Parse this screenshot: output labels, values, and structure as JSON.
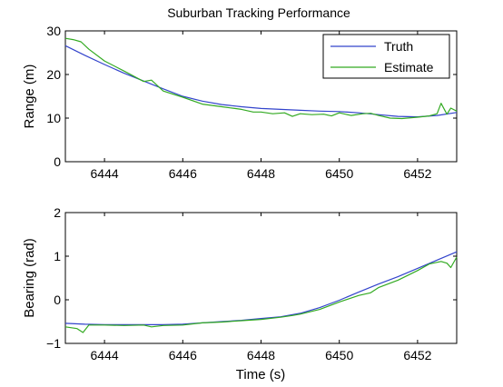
{
  "chart_data": [
    {
      "type": "line",
      "title": "Suburban Tracking Performance",
      "xlabel": "",
      "ylabel": "Range (m)",
      "xlim": [
        6443,
        6453
      ],
      "ylim": [
        0,
        30
      ],
      "xticks": [
        "6444",
        "6446",
        "6448",
        "6450",
        "6452"
      ],
      "xtick_values": [
        6444,
        6446,
        6448,
        6450,
        6452
      ],
      "yticks": [
        "0",
        "10",
        "20",
        "30"
      ],
      "ytick_values": [
        0,
        10,
        20,
        30
      ],
      "legend": {
        "position": "top-right"
      },
      "series": [
        {
          "name": "Truth",
          "color": "#3344cc",
          "x": [
            6443,
            6443.5,
            6444,
            6444.5,
            6445,
            6445.5,
            6446,
            6446.5,
            6447,
            6447.5,
            6448,
            6448.5,
            6449,
            6449.5,
            6450,
            6450.5,
            6451,
            6451.5,
            6452,
            6452.5,
            6453
          ],
          "y": [
            26.6,
            24.4,
            22.3,
            20.3,
            18.5,
            16.7,
            15.0,
            13.9,
            13.1,
            12.6,
            12.2,
            12.0,
            11.8,
            11.6,
            11.5,
            11.2,
            10.8,
            10.4,
            10.3,
            10.6,
            11.3
          ]
        },
        {
          "name": "Estimate",
          "color": "#33aa22",
          "x": [
            6443,
            6443.2,
            6443.4,
            6443.6,
            6444,
            6444.5,
            6445,
            6445.2,
            6445.5,
            6446,
            6446.5,
            6447,
            6447.5,
            6447.8,
            6448,
            6448.3,
            6448.6,
            6448.8,
            6449,
            6449.3,
            6449.6,
            6449.8,
            6450,
            6450.3,
            6450.6,
            6450.8,
            6451,
            6451.3,
            6451.6,
            6452,
            6452.3,
            6452.5,
            6452.6,
            6452.75,
            6452.85,
            6453
          ],
          "y": [
            28.3,
            28.0,
            27.5,
            25.8,
            23.1,
            20.8,
            18.4,
            18.7,
            16.2,
            14.8,
            13.2,
            12.6,
            12.0,
            11.4,
            11.4,
            11.0,
            11.2,
            10.4,
            11.0,
            10.8,
            10.9,
            10.5,
            11.2,
            10.6,
            11.0,
            11.1,
            10.6,
            10.0,
            9.9,
            10.2,
            10.5,
            11.0,
            13.4,
            10.9,
            12.3,
            11.6
          ]
        }
      ]
    },
    {
      "type": "line",
      "title": "",
      "xlabel": "Time (s)",
      "ylabel": "Bearing (rad)",
      "xlim": [
        6443,
        6453
      ],
      "ylim": [
        -1,
        2
      ],
      "xticks": [
        "6444",
        "6446",
        "6448",
        "6450",
        "6452"
      ],
      "xtick_values": [
        6444,
        6446,
        6448,
        6450,
        6452
      ],
      "yticks": [
        "−1",
        "0",
        "1",
        "2"
      ],
      "ytick_values": [
        -1,
        0,
        1,
        2
      ],
      "series": [
        {
          "color": "#3344cc",
          "x": [
            6443,
            6443.5,
            6444,
            6444.5,
            6445,
            6445.5,
            6446,
            6446.5,
            6447,
            6447.5,
            6448,
            6448.5,
            6449,
            6449.5,
            6450,
            6450.5,
            6451,
            6451.5,
            6452,
            6452.5,
            6453
          ],
          "y": [
            -0.54,
            -0.56,
            -0.57,
            -0.57,
            -0.57,
            -0.57,
            -0.56,
            -0.53,
            -0.5,
            -0.47,
            -0.43,
            -0.39,
            -0.31,
            -0.18,
            -0.01,
            0.18,
            0.36,
            0.53,
            0.72,
            0.91,
            1.1
          ]
        },
        {
          "color": "#33aa22",
          "x": [
            6443,
            6443.3,
            6443.45,
            6443.6,
            6444,
            6444.5,
            6445,
            6445.2,
            6445.5,
            6446,
            6446.5,
            6447,
            6447.5,
            6448,
            6448.5,
            6448.8,
            6449,
            6449.5,
            6450,
            6450.5,
            6450.8,
            6451,
            6451.5,
            6452,
            6452.3,
            6452.6,
            6452.75,
            6452.85,
            6453
          ],
          "y": [
            -0.62,
            -0.66,
            -0.75,
            -0.58,
            -0.58,
            -0.59,
            -0.58,
            -0.62,
            -0.59,
            -0.58,
            -0.53,
            -0.51,
            -0.48,
            -0.45,
            -0.4,
            -0.36,
            -0.33,
            -0.22,
            -0.05,
            0.1,
            0.16,
            0.28,
            0.45,
            0.67,
            0.82,
            0.88,
            0.84,
            0.74,
            0.98
          ]
        }
      ]
    }
  ]
}
